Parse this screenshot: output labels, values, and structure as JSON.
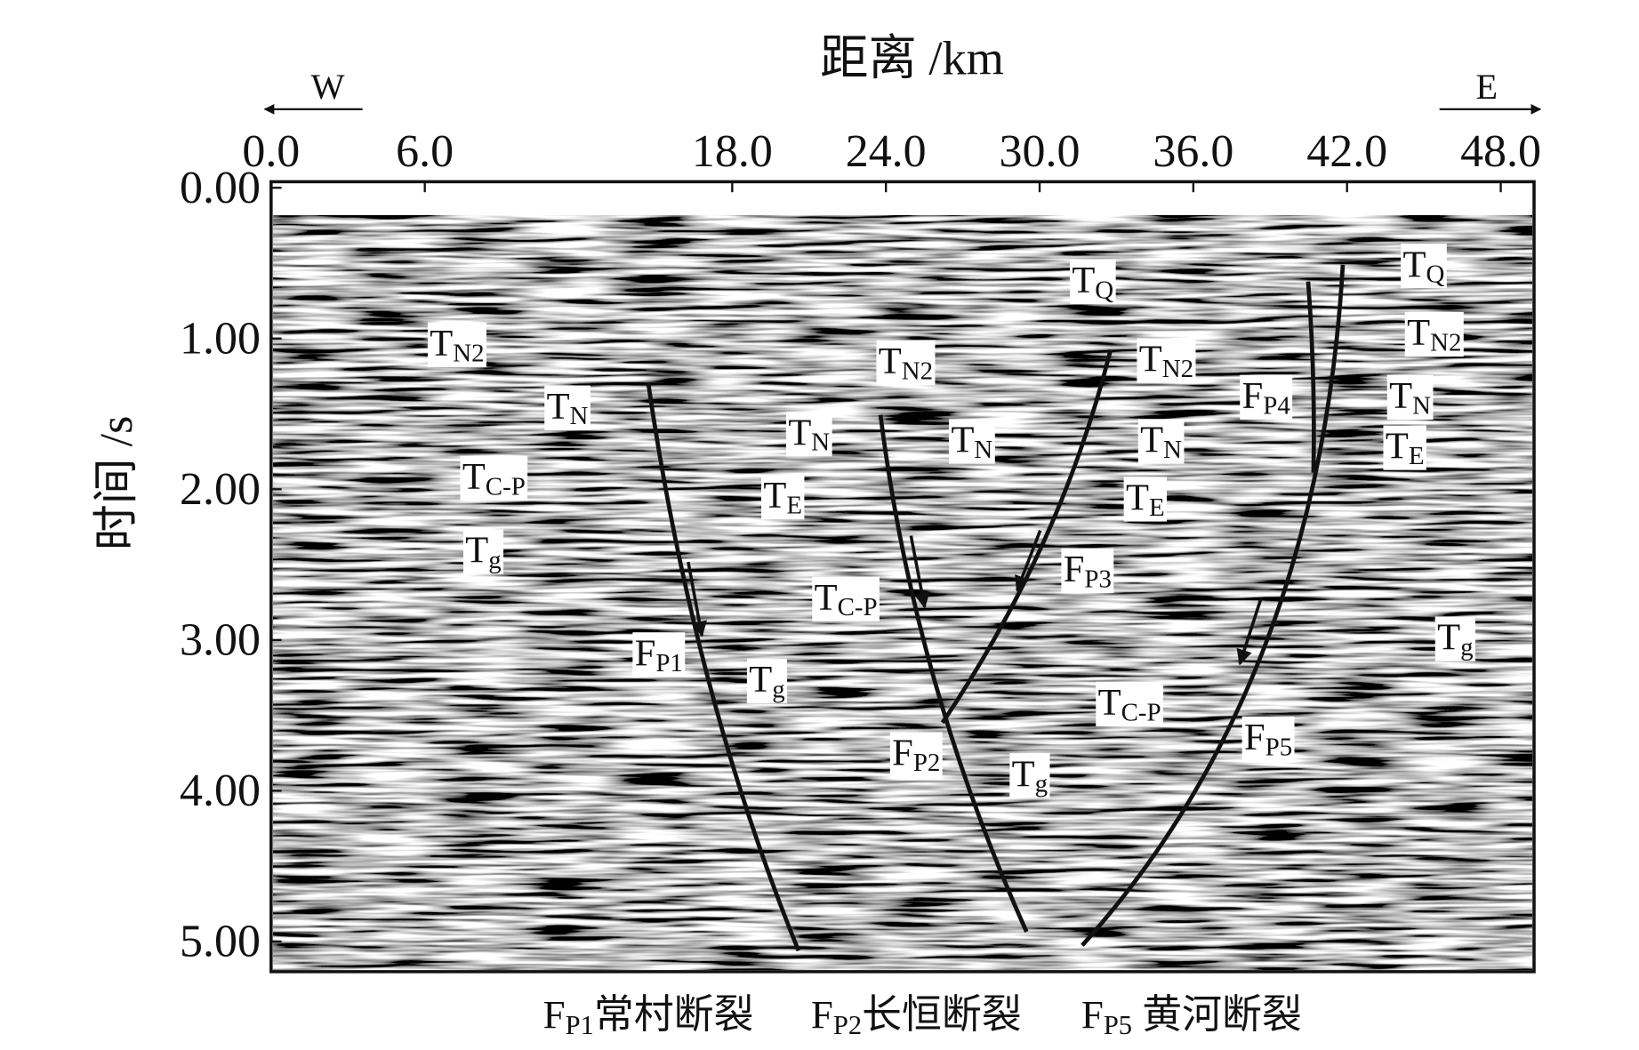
{
  "chart_data": {
    "type": "seismic-section",
    "xlabel": "距离 /km",
    "ylabel": "时间 /s",
    "direction_left": "W",
    "direction_right": "E",
    "xlim": [
      0,
      49.3
    ],
    "ylim": [
      -0.04,
      5.2
    ],
    "yinvert": true,
    "xticks": [
      {
        "value": 0,
        "label": "0.0"
      },
      {
        "value": 6,
        "label": "6.0"
      },
      {
        "value": 18,
        "label": "18.0"
      },
      {
        "value": 24,
        "label": "24.0"
      },
      {
        "value": 30,
        "label": "30.0"
      },
      {
        "value": 36,
        "label": "36.0"
      },
      {
        "value": 42,
        "label": "42.0"
      },
      {
        "value": 48,
        "label": "48.0"
      }
    ],
    "yticks": [
      {
        "value": 0,
        "label": "0.00"
      },
      {
        "value": 1,
        "label": "1.00"
      },
      {
        "value": 2,
        "label": "2.00"
      },
      {
        "value": 3,
        "label": "3.00"
      },
      {
        "value": 4,
        "label": "4.00"
      },
      {
        "value": 5,
        "label": "5.00"
      }
    ],
    "horizons": [
      [
        "T",
        "Q"
      ],
      [
        "T",
        "Q"
      ],
      [
        "T",
        "N2"
      ],
      [
        "T",
        "N2"
      ],
      [
        "T",
        "N2"
      ],
      [
        "T",
        "N2"
      ],
      [
        "T",
        "N"
      ],
      [
        "T",
        "N"
      ],
      [
        "T",
        "N"
      ],
      [
        "T",
        "N"
      ],
      [
        "T",
        "N"
      ],
      [
        "T",
        "E"
      ],
      [
        "T",
        "E"
      ],
      [
        "T",
        "E"
      ],
      [
        "T",
        "C-P"
      ],
      [
        "T",
        "C-P"
      ],
      [
        "T",
        "C-P"
      ],
      [
        "T",
        "g"
      ],
      [
        "T",
        "g"
      ],
      [
        "T",
        "g"
      ],
      [
        "T",
        "g"
      ]
    ],
    "faults": [
      [
        "F",
        "P1"
      ],
      [
        "F",
        "P2"
      ],
      [
        "F",
        "P3"
      ],
      [
        "F",
        "P4"
      ],
      [
        "F",
        "P5"
      ]
    ],
    "caption": [
      [
        "F",
        "P1",
        "常村断裂"
      ],
      [
        "F",
        "P2",
        "长恒断裂"
      ],
      [
        "F",
        "P5",
        " 黄河断裂"
      ]
    ]
  }
}
